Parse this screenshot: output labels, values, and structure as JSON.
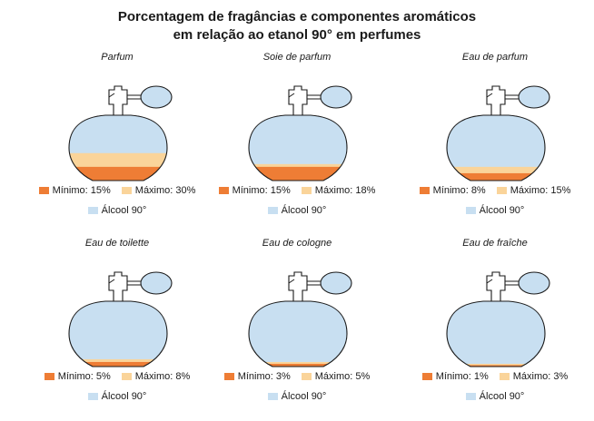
{
  "title_line1": "Porcentagem de fragâncias e componentes aromáticos",
  "title_line2": "em relação ao etanol 90° em perfumes",
  "colors": {
    "minimo": "#ee7d35",
    "maximo": "#fad49a",
    "alcool": "#c8dff1",
    "outline": "#1a1a1a"
  },
  "panels": [
    {
      "name": "Parfum",
      "min_label": "Mínimo: 15%",
      "max_label": "Máximo: 30%",
      "alcool_label": "Álcool 90°",
      "min_pct": 15,
      "max_pct": 30
    },
    {
      "name": "Soie de parfum",
      "min_label": "Mínimo: 15%",
      "max_label": "Máximo: 18%",
      "alcool_label": "Álcool 90°",
      "min_pct": 15,
      "max_pct": 18
    },
    {
      "name": "Eau de parfum",
      "min_label": "Mínimo: 8%",
      "max_label": "Máximo: 15%",
      "alcool_label": "Álcool 90°",
      "min_pct": 8,
      "max_pct": 15
    },
    {
      "name": "Eau de toilette",
      "min_label": "Mínimo: 5%",
      "max_label": "Máximo: 8%",
      "alcool_label": "Álcool 90°",
      "min_pct": 5,
      "max_pct": 8
    },
    {
      "name": "Eau de cologne",
      "min_label": "Mínimo: 3%",
      "max_label": "Máximo: 5%",
      "alcool_label": "Álcool 90°",
      "min_pct": 3,
      "max_pct": 5
    },
    {
      "name": "Eau de fraîche",
      "min_label": "Mínimo: 1%",
      "max_label": "Máximo: 3%",
      "alcool_label": "Álcool 90°",
      "min_pct": 1,
      "max_pct": 3
    }
  ]
}
